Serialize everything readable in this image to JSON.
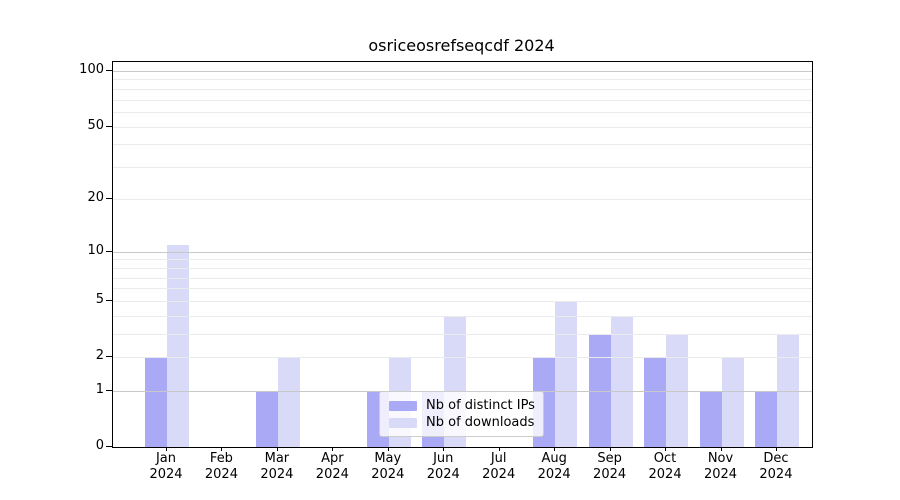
{
  "title": "osriceosrefseqcdf 2024",
  "chart_data": {
    "type": "bar",
    "title": "osriceosrefseqcdf 2024",
    "categories": [
      "Jan 2024",
      "Feb 2024",
      "Mar 2024",
      "Apr 2024",
      "May 2024",
      "Jun 2024",
      "Jul 2024",
      "Aug 2024",
      "Sep 2024",
      "Oct 2024",
      "Nov 2024",
      "Dec 2024"
    ],
    "series": [
      {
        "name": "Nb of distinct IPs",
        "color": "#a9a9f6",
        "values": [
          2,
          0,
          1,
          0,
          1,
          1,
          0,
          2,
          3,
          2,
          1,
          1
        ]
      },
      {
        "name": "Nb of downloads",
        "color": "#d9d9f8",
        "values": [
          11,
          0,
          2,
          0,
          2,
          4,
          0,
          5,
          4,
          3,
          2,
          3
        ]
      }
    ],
    "xlabel": "",
    "ylabel": "",
    "yscale": "log1p",
    "ylim": [
      0,
      100
    ],
    "yticks": [
      0,
      1,
      2,
      5,
      10,
      20,
      50,
      100
    ],
    "major_gridlines": [
      1,
      10,
      100
    ],
    "minor_gridlines": [
      2,
      3,
      4,
      5,
      6,
      7,
      8,
      9,
      20,
      30,
      40,
      50,
      60,
      70,
      80,
      90
    ],
    "grid": true,
    "legend_position": "lower center"
  },
  "colors": {
    "ips_bar": "#a9a9f6",
    "downloads_bar": "#d9d9f8",
    "major_grid": "#c8c8c8",
    "minor_grid": "#ebebeb",
    "axis": "#000000",
    "legend_border": "#cccccc"
  }
}
